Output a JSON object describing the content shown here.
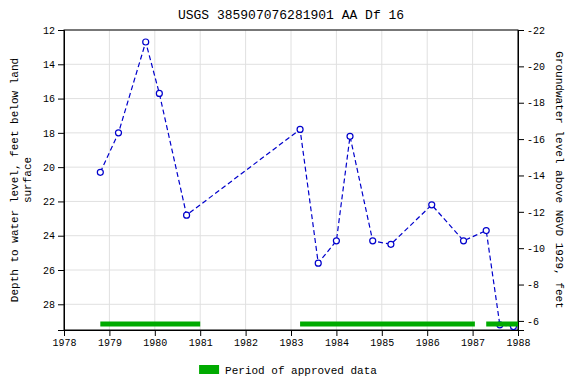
{
  "chart_data": {
    "type": "line",
    "title": "USGS 385907076281901 AA Df  16",
    "ylabel": "Depth to water level, feet below land\nsurface",
    "y2label": "Groundwater level above NGVD 1929, feet",
    "xlim": [
      1978,
      1988
    ],
    "xticks": [
      1978,
      1979,
      1980,
      1981,
      1982,
      1983,
      1984,
      1985,
      1986,
      1987,
      1988
    ],
    "ylim": [
      29.5,
      12
    ],
    "yticks": [
      12,
      14,
      16,
      18,
      20,
      22,
      24,
      26,
      28
    ],
    "y2lim": [
      -5.5,
      -22
    ],
    "y2ticks": [
      -6,
      -8,
      -10,
      -12,
      -14,
      -16,
      -18,
      -20,
      -22
    ],
    "grid": true,
    "legend": "bottom",
    "series": [
      {
        "type": "line",
        "color": "#0000cc",
        "marker": "open-circle",
        "line_style": "dashed",
        "x": [
          1978.8,
          1979.2,
          1979.8,
          1980.1,
          1980.7,
          1983.2,
          1983.6,
          1984.0,
          1984.3,
          1984.8,
          1985.2,
          1986.1,
          1986.8,
          1987.3,
          1987.6,
          1987.9
        ],
        "values": [
          20.3,
          18.0,
          12.7,
          15.7,
          22.8,
          17.8,
          25.6,
          24.3,
          18.2,
          24.3,
          24.5,
          22.2,
          24.3,
          23.7,
          29.2,
          29.3
        ]
      },
      {
        "name": "Period of approved data",
        "type": "span",
        "color": "#00aa00",
        "start": [
          1978.8,
          1983.2,
          1987.3
        ],
        "end": [
          1981.0,
          1987.05,
          1988.0
        ],
        "y": 29.15
      }
    ]
  }
}
